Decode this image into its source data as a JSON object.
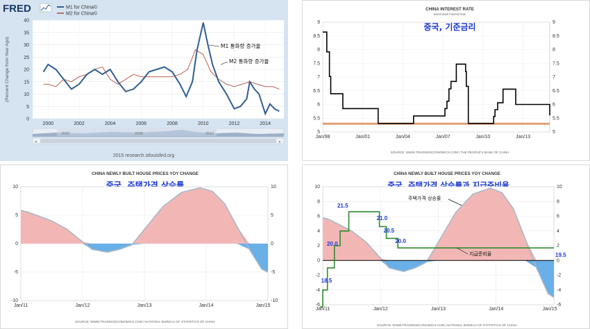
{
  "p1": {
    "logo": "FRED",
    "legend": [
      "M1 for China©",
      "M2 for China©"
    ],
    "ylabel": "(Percent Change from Year Ago)",
    "yticks": [
      "0",
      "5",
      "10",
      "15",
      "20",
      "25",
      "30",
      "35",
      "40"
    ],
    "xticks": [
      "2000",
      "2002",
      "2004",
      "2006",
      "2008",
      "2010",
      "2012",
      "2014"
    ],
    "nav_labels": [
      "2000",
      "2005",
      "2010"
    ],
    "footer": "2015 research.stlouisfed.org",
    "annot_m1": "M1 통화량 증가율",
    "annot_m2": "M2 통화량 증가율",
    "colors": {
      "m1": "#2f5d93",
      "m2": "#b24b3a"
    }
  },
  "p2": {
    "title": "CHINA INTEREST RATE",
    "subtitle": "Benchmark Interest Rate",
    "overlay": "중국, 기준금리",
    "yticks": [
      "5",
      "5.5",
      "6",
      "6.5",
      "7",
      "7.5",
      "8",
      "8.5",
      "9"
    ],
    "xticks": [
      "Jan/98",
      "Jan/01",
      "Jan/04",
      "Jan/07",
      "Jan/10",
      "Jan/13"
    ],
    "source": "SOURCE: WWW.TRADINGECONOMICS.COM  |  THE PEOPLE'S BANK OF CHINA"
  },
  "p3": {
    "title": "CHINA NEWLY BUILT HOUSE PRICES YOY CHANGE",
    "overlay": "중국, 주택가격 상승률",
    "yticks": [
      "-10",
      "-5",
      "0",
      "5",
      "10"
    ],
    "xticks": [
      "Jan/11",
      "Jan/12",
      "Jan/13",
      "Jan/14",
      "Jan/15"
    ],
    "source": "SOURCE: WWW.TRADINGECONOMICS.COM  |  NATIONAL BUREAU OF STATISTICS OF CHINA"
  },
  "p4": {
    "title": "CHINA NEWLY BUILT HOUSE PRICES YOY CHANGE",
    "overlay": "중국, 주택가격 상승률과 지급준비율",
    "yticks_left": [
      "-6",
      "-4",
      "-2",
      "0",
      "2",
      "4",
      "6",
      "8",
      "10"
    ],
    "yticks_right": [
      "-6",
      "-4",
      "-2",
      "0",
      "2",
      "4",
      "6",
      "8",
      "10"
    ],
    "xticks": [
      "Jan/11",
      "Jan/12",
      "Jan/13",
      "Jan/14",
      "Jan/15"
    ],
    "rrr_labels": [
      "18.5",
      "20.0",
      "21.5",
      "21.0",
      "20.5",
      "20.0",
      "19.5"
    ],
    "annot_house": "주택가격 상승률",
    "annot_rrr": "지급준비율",
    "source": "SOURCE: WWW.TRADINGECONOMICS.COM  |  NATIONAL BUREAU OF STATISTICS OF CHINA"
  },
  "chart_data": [
    {
      "type": "line",
      "ylabel": "(Percent Change from Year Ago)",
      "ylim": [
        0,
        40
      ],
      "grid": true,
      "legend": "top-left",
      "series": [
        {
          "name": "M1 for China©",
          "color": "#2f5d93",
          "x": [
            1999.7,
            2000.0,
            2000.5,
            2001.0,
            2001.5,
            2002.0,
            2002.5,
            2003.0,
            2003.5,
            2004.0,
            2004.5,
            2005.0,
            2005.5,
            2006.0,
            2006.5,
            2007.0,
            2007.5,
            2008.0,
            2008.5,
            2008.9,
            2009.3,
            2009.6,
            2010.0,
            2010.3,
            2010.6,
            2011.0,
            2011.5,
            2012.0,
            2012.4,
            2012.8,
            2013.0,
            2013.3,
            2013.6,
            2014.0,
            2014.3,
            2014.6,
            2014.9
          ],
          "y": [
            19,
            22,
            20,
            16,
            12,
            14,
            18,
            20,
            18,
            20,
            15,
            11,
            12,
            15,
            19,
            20,
            21,
            19,
            14,
            9,
            15,
            28,
            39,
            30,
            22,
            15,
            10,
            4,
            5,
            8,
            15,
            12,
            10,
            2,
            6,
            4,
            3
          ]
        },
        {
          "name": "M2 for China©",
          "color": "#b24b3a",
          "x": [
            1999.7,
            2000.0,
            2000.5,
            2001.0,
            2001.5,
            2002.0,
            2002.5,
            2003.0,
            2003.5,
            2004.0,
            2004.5,
            2005.0,
            2005.5,
            2006.0,
            2006.5,
            2007.0,
            2007.5,
            2008.0,
            2008.5,
            2009.0,
            2009.5,
            2010.0,
            2010.5,
            2011.0,
            2011.5,
            2012.0,
            2012.5,
            2013.0,
            2013.5,
            2014.0,
            2014.5,
            2014.9
          ],
          "y": [
            14,
            14,
            13,
            16,
            15,
            17,
            18,
            20,
            21,
            16,
            14,
            16,
            18,
            17,
            17,
            17,
            17,
            17,
            18,
            20,
            28,
            26,
            19,
            16,
            14,
            13,
            14,
            15,
            14,
            13,
            13,
            12
          ]
        }
      ]
    },
    {
      "type": "line",
      "title": "CHINA INTEREST RATE",
      "subtitle": "Benchmark Interest Rate",
      "ylim": [
        5,
        9
      ],
      "grid": true,
      "series": [
        {
          "name": "Benchmark Interest Rate",
          "color": "#000000",
          "x": [
            1998.0,
            1998.2,
            1998.3,
            1998.5,
            1998.6,
            1999.0,
            1999.5,
            2002.15,
            2004.8,
            2007.15,
            2007.3,
            2007.45,
            2007.6,
            2008.0,
            2008.7,
            2008.75,
            2008.9,
            2010.8,
            2010.9,
            2011.1,
            2011.5,
            2012.45,
            2015.0
          ],
          "y": [
            8.64,
            8.64,
            7.92,
            7.02,
            6.39,
            6.39,
            5.85,
            5.31,
            5.58,
            5.85,
            6.12,
            6.57,
            6.84,
            7.47,
            7.2,
            6.66,
            5.31,
            5.56,
            5.81,
            6.06,
            6.56,
            6.0,
            5.6
          ]
        },
        {
          "name": "",
          "color": "#e0a070",
          "x": [
            1998.0,
            2015.0
          ],
          "y": [
            5.3,
            5.3
          ]
        }
      ]
    },
    {
      "type": "area",
      "title": "CHINA NEWLY BUILT HOUSE PRICES YOY CHANGE",
      "ylim": [
        -10,
        10
      ],
      "grid": true,
      "series": [
        {
          "name": "CHINA NEWLY BUILT HOUSE PRICES YOY CHANGE",
          "x": [
            2011.0,
            2011.1,
            2011.3,
            2011.5,
            2011.75,
            2012.0,
            2012.15,
            2012.4,
            2012.6,
            2012.8,
            2013.0,
            2013.3,
            2013.6,
            2013.9,
            2014.1,
            2014.3,
            2014.5,
            2014.7,
            2014.9,
            2015.0
          ],
          "y": [
            5.8,
            5.6,
            4.8,
            4.0,
            2.5,
            0.3,
            -1.0,
            -1.5,
            -1.0,
            -0.2,
            2.5,
            6.5,
            9.0,
            9.8,
            9.2,
            7.0,
            3.0,
            -1.0,
            -4.5,
            -5.0
          ]
        }
      ]
    },
    {
      "type": "line",
      "title": "CHINA NEWLY BUILT HOUSE PRICES YOY CHANGE",
      "ylim": [
        -6,
        10
      ],
      "grid": true,
      "series": [
        {
          "name": "주택가격 상승률",
          "x": [
            2011.0,
            2011.1,
            2011.3,
            2011.5,
            2011.75,
            2012.0,
            2012.15,
            2012.4,
            2012.6,
            2012.8,
            2013.0,
            2013.3,
            2013.6,
            2013.9,
            2014.1,
            2014.3,
            2014.5,
            2014.7,
            2014.9,
            2015.0
          ],
          "y": [
            5.8,
            5.6,
            4.8,
            4.0,
            2.5,
            0.3,
            -1.0,
            -1.5,
            -1.0,
            -0.2,
            2.5,
            6.5,
            9.0,
            9.8,
            9.2,
            7.0,
            3.0,
            -1.0,
            -4.5,
            -5.0
          ]
        },
        {
          "name": "지급준비율",
          "color": "#2e8b2e",
          "x": [
            2010.95,
            2011.0,
            2011.08,
            2011.2,
            2011.3,
            2011.45,
            2011.98,
            2012.1,
            2012.3,
            2015.0
          ],
          "y": [
            -6.3,
            -4.0,
            -1.0,
            2.0,
            4.0,
            6.6,
            4.6,
            3.0,
            1.7,
            1.7
          ]
        }
      ]
    }
  ]
}
